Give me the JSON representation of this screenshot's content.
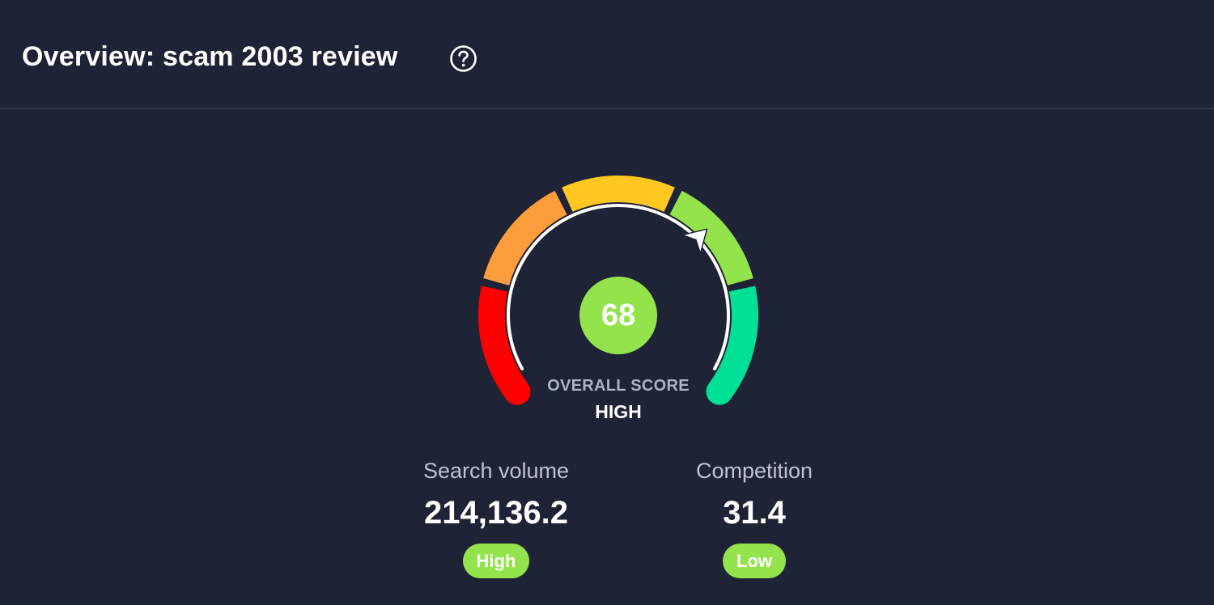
{
  "header": {
    "title": "Overview: scam 2003 review",
    "help_icon": "question-circle-icon"
  },
  "gauge": {
    "score": "68",
    "score_fraction": 0.68,
    "caption": "OVERALL SCORE",
    "level": "HIGH",
    "segment_colors": [
      "#ff0000",
      "#ff9d3c",
      "#ffc71f",
      "#92e34c",
      "#00e096"
    ],
    "score_color": "#92e34c",
    "pointer_icon": "arrow-pointer-icon"
  },
  "metrics": [
    {
      "label": "Search volume",
      "value": "214,136.2",
      "badge": "High",
      "badge_color": "#92e34c"
    },
    {
      "label": "Competition",
      "value": "31.4",
      "badge": "Low",
      "badge_color": "#92e34c"
    }
  ]
}
